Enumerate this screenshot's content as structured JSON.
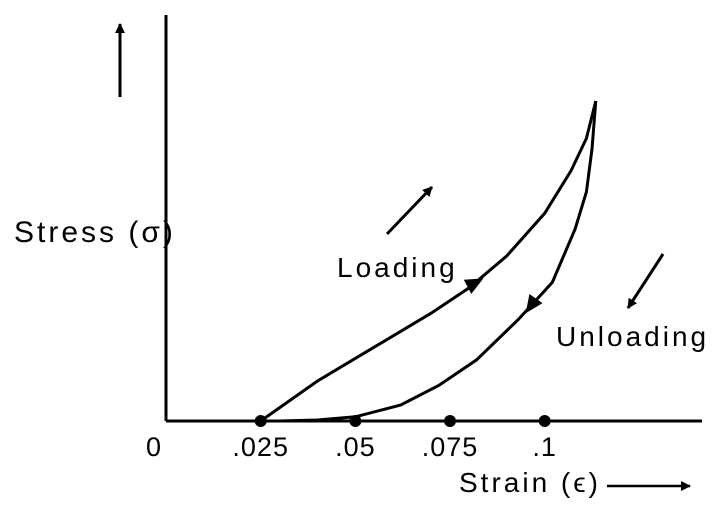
{
  "chart_data": {
    "type": "line",
    "xlabel": "Strain (ϵ)",
    "ylabel": "Stress (σ)",
    "origin_label": "0",
    "tick_labels": [
      ".025",
      ".05",
      ".075",
      ".1"
    ],
    "tick_values": [
      0.025,
      0.05,
      0.075,
      0.1
    ],
    "annotations": {
      "loading": "Loading",
      "unloading": "Unloading"
    },
    "xlim": [
      0,
      0.143
    ],
    "series": [
      {
        "name": "Loading",
        "x": [
          0.025,
          0.04,
          0.055,
          0.07,
          0.08,
          0.09,
          0.1,
          0.107,
          0.111,
          0.1135
        ],
        "y": [
          0,
          0.125,
          0.231,
          0.337,
          0.416,
          0.516,
          0.649,
          0.783,
          0.883,
          1.0
        ]
      },
      {
        "name": "Unloading",
        "x": [
          0.1135,
          0.1125,
          0.111,
          0.108,
          0.102,
          0.093,
          0.082,
          0.072,
          0.062,
          0.05,
          0.04,
          0.03
        ],
        "y": [
          1.0,
          0.85,
          0.716,
          0.599,
          0.433,
          0.317,
          0.191,
          0.111,
          0.05,
          0.013,
          0.003,
          0
        ]
      }
    ]
  }
}
